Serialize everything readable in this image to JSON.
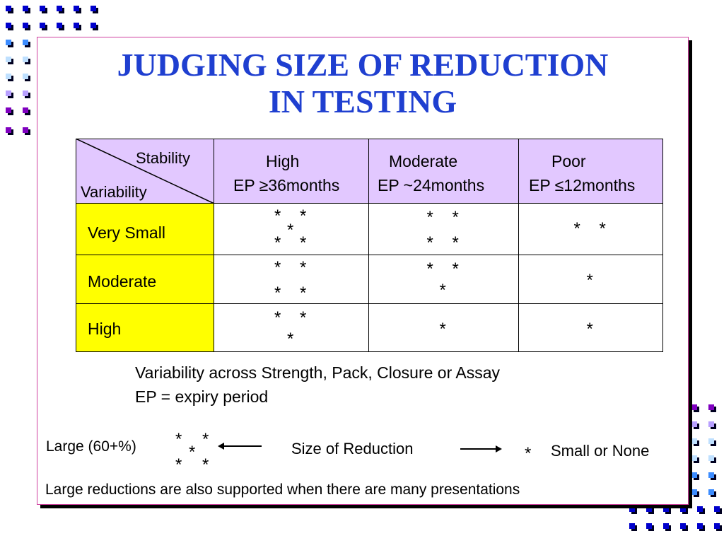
{
  "title": "JUDGING SIZE OF REDUCTION IN TESTING",
  "colors": {
    "title": "#1f3fd0",
    "header_fill": "#e2c8ff",
    "row_header_fill": "#ffff00",
    "border": "#d040a0"
  },
  "table": {
    "corner": {
      "top_label": "Stability",
      "bottom_label": "Variability"
    },
    "columns": [
      {
        "name": "High",
        "ep": "EP ≥36months"
      },
      {
        "name": "Moderate",
        "ep": "EP ~24months"
      },
      {
        "name": "Poor",
        "ep": "EP ≤12months"
      }
    ],
    "rows": [
      {
        "label": "Very Small"
      },
      {
        "label": "Moderate"
      },
      {
        "label": "High"
      }
    ],
    "star_counts": [
      [
        5,
        4,
        2
      ],
      [
        4,
        3,
        1
      ],
      [
        3,
        1,
        1
      ]
    ]
  },
  "notes": {
    "line1": "Variability across Strength, Pack, Closure or Assay",
    "line2": "EP = expiry period"
  },
  "legend": {
    "large": "Large (60+%)",
    "size": "Size of Reduction",
    "small": "Small or None",
    "star": "*",
    "large_star_count": 5,
    "small_star_count": 1
  },
  "footer": "Large reductions are also supported when there are many presentations"
}
